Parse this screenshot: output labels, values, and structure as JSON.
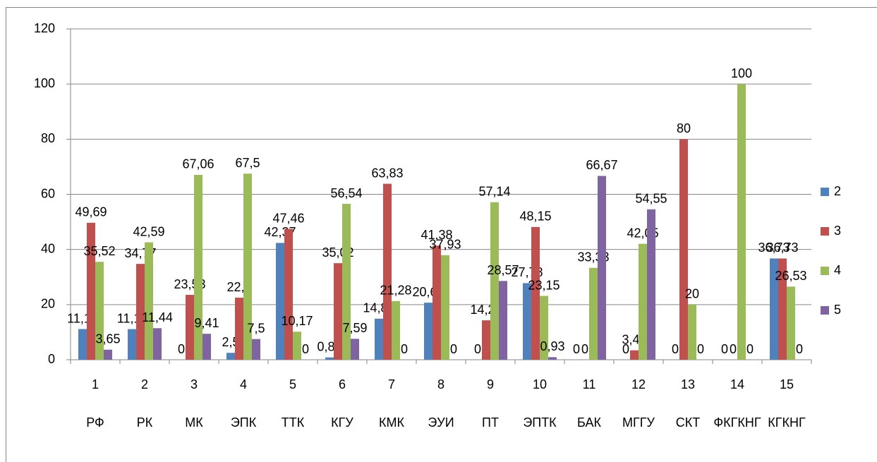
{
  "chart_data": {
    "type": "bar",
    "categories": [
      "1",
      "2",
      "3",
      "4",
      "5",
      "6",
      "7",
      "8",
      "9",
      "10",
      "11",
      "12",
      "13",
      "14",
      "15"
    ],
    "category_names": [
      "РФ",
      "РК",
      "МК",
      "ЭПК",
      "ТТК",
      "КГУ",
      "КМК",
      "ЭУИ",
      "ПТ",
      "ЭПТК",
      "БАК",
      "МГГУ",
      "СКТ",
      "ФКГКНГ",
      "КГКНГ"
    ],
    "series": [
      {
        "name": "2",
        "color": "#4f81bd",
        "values": [
          11.13,
          11.11,
          0,
          2.5,
          42.37,
          0.84,
          14.89,
          20.69,
          0,
          27.78,
          0,
          0,
          0,
          0,
          36.73
        ],
        "value_labels": [
          "11,13",
          "11,11",
          "0",
          "2,5",
          "42,37",
          "0,84",
          "14,89",
          "20,69",
          "0",
          "27,78",
          "0",
          "0",
          "0",
          "0",
          "36,73"
        ]
      },
      {
        "name": "3",
        "color": "#c0504d",
        "values": [
          49.69,
          34.77,
          23.53,
          22.5,
          47.46,
          35.02,
          63.83,
          41.38,
          14.29,
          48.15,
          0,
          3.41,
          80,
          0,
          36.73
        ],
        "value_labels": [
          "49,69",
          "34,77",
          "23,53",
          "22,5",
          "47,46",
          "35,02",
          "63,83",
          "41,38",
          "14,29",
          "48,15",
          "0",
          "3,41",
          "80",
          "0",
          "36,73"
        ]
      },
      {
        "name": "4",
        "color": "#9bbb59",
        "values": [
          35.52,
          42.59,
          67.06,
          67.5,
          10.17,
          56.54,
          21.28,
          37.93,
          57.14,
          23.15,
          33.33,
          42.05,
          20,
          100,
          26.53
        ],
        "value_labels": [
          "35,52",
          "42,59",
          "67,06",
          "67,5",
          "10,17",
          "56,54",
          "21,28",
          "37,93",
          "57,14",
          "23,15",
          "33,33",
          "42,05",
          "20",
          "100",
          "26,53"
        ]
      },
      {
        "name": "5",
        "color": "#8064a2",
        "values": [
          3.65,
          11.44,
          9.41,
          7.5,
          0,
          7.59,
          0,
          0,
          28.57,
          0.93,
          66.67,
          54.55,
          0,
          0,
          0
        ],
        "value_labels": [
          "3,65",
          "11,44",
          "9,41",
          "7,5",
          "0",
          "7,59",
          "0",
          "0",
          "28,57",
          "0,93",
          "66,67",
          "54,55",
          "0",
          "0",
          "0"
        ]
      }
    ],
    "ylim": [
      0,
      120
    ],
    "yticks": [
      0,
      20,
      40,
      60,
      80,
      100,
      120
    ],
    "grid": true,
    "legend": "right"
  }
}
